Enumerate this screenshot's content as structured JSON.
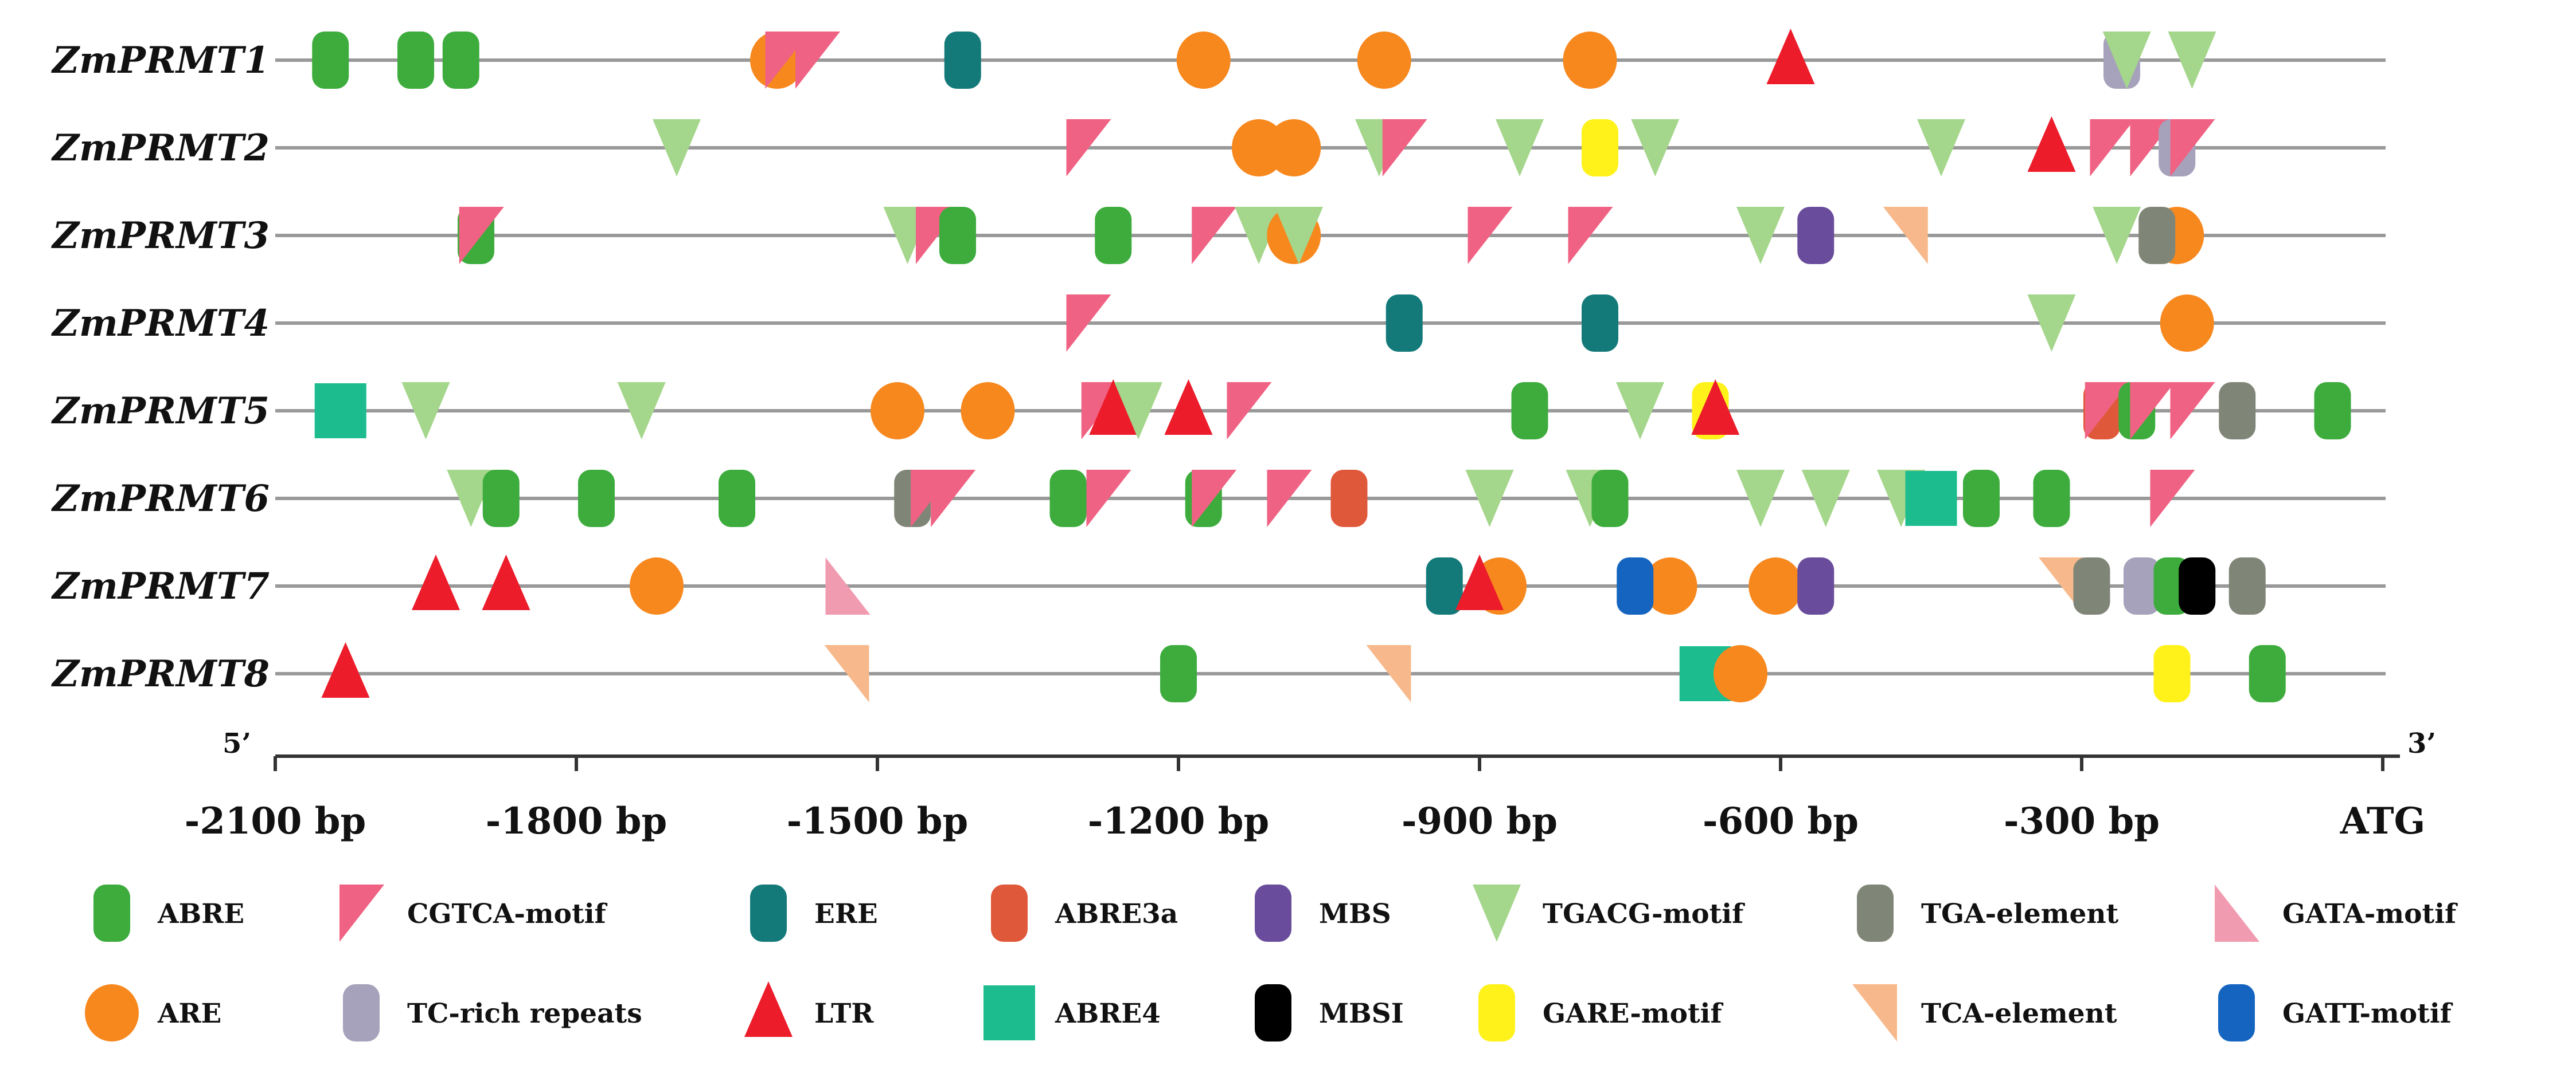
{
  "genes": [
    {
      "name": "ZmPRMT1",
      "elements": [
        {
          "type": "ABRE",
          "pos": -2045
        },
        {
          "type": "ABRE",
          "pos": -1960
        },
        {
          "type": "ABRE",
          "pos": -1915
        },
        {
          "type": "ARE",
          "pos": -1600
        },
        {
          "type": "CGTCA-motif",
          "pos": -1590
        },
        {
          "type": "CGTCA-motif",
          "pos": -1560
        },
        {
          "type": "ERE",
          "pos": -1415
        },
        {
          "type": "ARE",
          "pos": -1175
        },
        {
          "type": "ARE",
          "pos": -995
        },
        {
          "type": "ARE",
          "pos": -790
        },
        {
          "type": "LTR",
          "pos": -590
        },
        {
          "type": "TC-rich repeats",
          "pos": -260
        },
        {
          "type": "TGACG-motif",
          "pos": -255
        },
        {
          "type": "TGACG-motif",
          "pos": -190
        }
      ]
    },
    {
      "name": "ZmPRMT2",
      "elements": [
        {
          "type": "TGACG-motif",
          "pos": -1700
        },
        {
          "type": "CGTCA-motif",
          "pos": -1290
        },
        {
          "type": "ARE",
          "pos": -1120
        },
        {
          "type": "ARE",
          "pos": -1085
        },
        {
          "type": "TGACG-motif",
          "pos": -1000
        },
        {
          "type": "CGTCA-motif",
          "pos": -975
        },
        {
          "type": "TGACG-motif",
          "pos": -860
        },
        {
          "type": "GARE-motif",
          "pos": -780
        },
        {
          "type": "TGACG-motif",
          "pos": -725
        },
        {
          "type": "TGACG-motif",
          "pos": -440
        },
        {
          "type": "LTR",
          "pos": -330
        },
        {
          "type": "CGTCA-motif",
          "pos": -270
        },
        {
          "type": "CGTCA-motif",
          "pos": -230
        },
        {
          "type": "TC-rich repeats",
          "pos": -205
        },
        {
          "type": "CGTCA-motif",
          "pos": -190
        }
      ]
    },
    {
      "name": "ZmPRMT3",
      "elements": [
        {
          "type": "ABRE",
          "pos": -1900
        },
        {
          "type": "CGTCA-motif",
          "pos": -1895
        },
        {
          "type": "TGACG-motif",
          "pos": -1470
        },
        {
          "type": "CGTCA-motif",
          "pos": -1440
        },
        {
          "type": "ABRE",
          "pos": -1420
        },
        {
          "type": "ABRE",
          "pos": -1265
        },
        {
          "type": "CGTCA-motif",
          "pos": -1165
        },
        {
          "type": "TGACG-motif",
          "pos": -1120
        },
        {
          "type": "ARE",
          "pos": -1085
        },
        {
          "type": "TGACG-motif",
          "pos": -1080
        },
        {
          "type": "CGTCA-motif",
          "pos": -890
        },
        {
          "type": "CGTCA-motif",
          "pos": -790
        },
        {
          "type": "TGACG-motif",
          "pos": -620
        },
        {
          "type": "MBS",
          "pos": -565
        },
        {
          "type": "TCA-element",
          "pos": -475
        },
        {
          "type": "TGACG-motif",
          "pos": -265
        },
        {
          "type": "ARE",
          "pos": -205
        },
        {
          "type": "TGA-element",
          "pos": -225
        }
      ]
    },
    {
      "name": "ZmPRMT4",
      "elements": [
        {
          "type": "CGTCA-motif",
          "pos": -1290
        },
        {
          "type": "ERE",
          "pos": -975
        },
        {
          "type": "ERE",
          "pos": -780
        },
        {
          "type": "TGACG-motif",
          "pos": -330
        },
        {
          "type": "ARE",
          "pos": -195
        }
      ]
    },
    {
      "name": "ZmPRMT5",
      "elements": [
        {
          "type": "ABRE4",
          "pos": -2035
        },
        {
          "type": "TGACG-motif",
          "pos": -1950
        },
        {
          "type": "TGACG-motif",
          "pos": -1735
        },
        {
          "type": "ARE",
          "pos": -1480
        },
        {
          "type": "ARE",
          "pos": -1390
        },
        {
          "type": "CGTCA-motif",
          "pos": -1275
        },
        {
          "type": "LTR",
          "pos": -1265
        },
        {
          "type": "TGACG-motif",
          "pos": -1240
        },
        {
          "type": "LTR",
          "pos": -1190
        },
        {
          "type": "CGTCA-motif",
          "pos": -1130
        },
        {
          "type": "ABRE",
          "pos": -850
        },
        {
          "type": "TGACG-motif",
          "pos": -740
        },
        {
          "type": "GARE-motif",
          "pos": -670
        },
        {
          "type": "LTR",
          "pos": -665
        },
        {
          "type": "ABRE3a",
          "pos": -280
        },
        {
          "type": "CGTCA-motif",
          "pos": -275
        },
        {
          "type": "ABRE",
          "pos": -245
        },
        {
          "type": "CGTCA-motif",
          "pos": -230
        },
        {
          "type": "CGTCA-motif",
          "pos": -190
        },
        {
          "type": "TGA-element",
          "pos": -145
        },
        {
          "type": "ABRE",
          "pos": -50
        }
      ]
    },
    {
      "name": "ZmPRMT6",
      "elements": [
        {
          "type": "TGACG-motif",
          "pos": -1905
        },
        {
          "type": "ABRE",
          "pos": -1875
        },
        {
          "type": "ABRE",
          "pos": -1780
        },
        {
          "type": "ABRE",
          "pos": -1640
        },
        {
          "type": "TGA-element",
          "pos": -1465
        },
        {
          "type": "CGTCA-motif",
          "pos": -1445
        },
        {
          "type": "CGTCA-motif",
          "pos": -1425
        },
        {
          "type": "ABRE",
          "pos": -1310
        },
        {
          "type": "CGTCA-motif",
          "pos": -1270
        },
        {
          "type": "ABRE",
          "pos": -1175
        },
        {
          "type": "CGTCA-motif",
          "pos": -1165
        },
        {
          "type": "CGTCA-motif",
          "pos": -1090
        },
        {
          "type": "ABRE3a",
          "pos": -1030
        },
        {
          "type": "TGACG-motif",
          "pos": -890
        },
        {
          "type": "TGACG-motif",
          "pos": -790
        },
        {
          "type": "ABRE",
          "pos": -770
        },
        {
          "type": "TGACG-motif",
          "pos": -620
        },
        {
          "type": "TGACG-motif",
          "pos": -555
        },
        {
          "type": "TGACG-motif",
          "pos": -480
        },
        {
          "type": "ABRE4",
          "pos": -450
        },
        {
          "type": "ABRE",
          "pos": -400
        },
        {
          "type": "ABRE",
          "pos": -330
        },
        {
          "type": "CGTCA-motif",
          "pos": -210
        }
      ]
    },
    {
      "name": "ZmPRMT7",
      "elements": [
        {
          "type": "LTR",
          "pos": -1940
        },
        {
          "type": "LTR",
          "pos": -1870
        },
        {
          "type": "ARE",
          "pos": -1720
        },
        {
          "type": "GATA-motif",
          "pos": -1530
        },
        {
          "type": "ERE",
          "pos": -935
        },
        {
          "type": "ARE",
          "pos": -880
        },
        {
          "type": "LTR",
          "pos": -900
        },
        {
          "type": "ARE",
          "pos": -710
        },
        {
          "type": "GATT-motif",
          "pos": -745
        },
        {
          "type": "ARE",
          "pos": -605
        },
        {
          "type": "MBS",
          "pos": -565
        },
        {
          "type": "TCA-element",
          "pos": -320
        },
        {
          "type": "TGA-element",
          "pos": -290
        },
        {
          "type": "TC-rich repeats",
          "pos": -240
        },
        {
          "type": "ABRE",
          "pos": -210
        },
        {
          "type": "MBSI",
          "pos": -185
        },
        {
          "type": "TGA-element",
          "pos": -135
        }
      ]
    },
    {
      "name": "ZmPRMT8",
      "elements": [
        {
          "type": "LTR",
          "pos": -2030
        },
        {
          "type": "TCA-element",
          "pos": -1530
        },
        {
          "type": "ABRE",
          "pos": -1200
        },
        {
          "type": "TCA-element",
          "pos": -990
        },
        {
          "type": "ABRE4",
          "pos": -675
        },
        {
          "type": "ARE",
          "pos": -640
        },
        {
          "type": "GARE-motif",
          "pos": -210
        },
        {
          "type": "ABRE",
          "pos": -115
        }
      ]
    }
  ],
  "axis": {
    "min": -2100,
    "max": 0,
    "ticks": [
      {
        "value": -2100,
        "label": "-2100 bp"
      },
      {
        "value": -1800,
        "label": "-1800 bp"
      },
      {
        "value": -1500,
        "label": "-1500 bp"
      },
      {
        "value": -1200,
        "label": "-1200 bp"
      },
      {
        "value": -900,
        "label": "-900 bp"
      },
      {
        "value": -600,
        "label": "-600 bp"
      },
      {
        "value": -300,
        "label": "-300 bp"
      },
      {
        "value": 0,
        "label": "ATG"
      }
    ],
    "left_end": "5’",
    "right_end": "3’"
  },
  "legend": {
    "row1": [
      {
        "type": "ABRE",
        "label": "ABRE"
      },
      {
        "type": "CGTCA-motif",
        "label": "CGTCA-motif"
      },
      {
        "type": "ERE",
        "label": "ERE"
      },
      {
        "type": "ABRE3a",
        "label": "ABRE3a"
      },
      {
        "type": "MBS",
        "label": "MBS"
      },
      {
        "type": "TGACG-motif",
        "label": "TGACG-motif"
      },
      {
        "type": "TGA-element",
        "label": "TGA-element"
      },
      {
        "type": "GATA-motif",
        "label": "GATA-motif"
      }
    ],
    "row2": [
      {
        "type": "ARE",
        "label": "ARE"
      },
      {
        "type": "TC-rich repeats",
        "label": "TC-rich repeats"
      },
      {
        "type": "LTR",
        "label": "LTR"
      },
      {
        "type": "ABRE4",
        "label": "ABRE4"
      },
      {
        "type": "MBSI",
        "label": "MBSI"
      },
      {
        "type": "GARE-motif",
        "label": "GARE-motif"
      },
      {
        "type": "TCA-element",
        "label": "TCA-element"
      },
      {
        "type": "GATT-motif",
        "label": "GATT-motif"
      }
    ]
  },
  "styles": {
    "ABRE": {
      "shape": "rounded-rect",
      "color": "#3dac3d"
    },
    "CGTCA-motif": {
      "shape": "flag",
      "color": "#f06283"
    },
    "ERE": {
      "shape": "rounded-rect",
      "color": "#137a79"
    },
    "ABRE3a": {
      "shape": "rounded-rect",
      "color": "#e0583a"
    },
    "MBS": {
      "shape": "rounded-rect",
      "color": "#6a4c9c"
    },
    "TGACG-motif": {
      "shape": "triangle-down",
      "color": "#a4d68b"
    },
    "TGA-element": {
      "shape": "rounded-rect",
      "color": "#808677"
    },
    "GATA-motif": {
      "shape": "right-triangle",
      "color": "#f19bb0"
    },
    "ARE": {
      "shape": "circle",
      "color": "#f7881e"
    },
    "TC-rich repeats": {
      "shape": "rounded-rect",
      "color": "#a6a2bc"
    },
    "LTR": {
      "shape": "triangle-up",
      "color": "#ec1c2a"
    },
    "ABRE4": {
      "shape": "square",
      "color": "#1cbc8e"
    },
    "MBSI": {
      "shape": "rounded-rect",
      "color": "#000000"
    },
    "GARE-motif": {
      "shape": "rounded-rect",
      "color": "#fff21b"
    },
    "TCA-element": {
      "shape": "flag-left",
      "color": "#f7b98c"
    },
    "GATT-motif": {
      "shape": "rounded-rect",
      "color": "#1565c0"
    }
  },
  "line_color": "#999999"
}
